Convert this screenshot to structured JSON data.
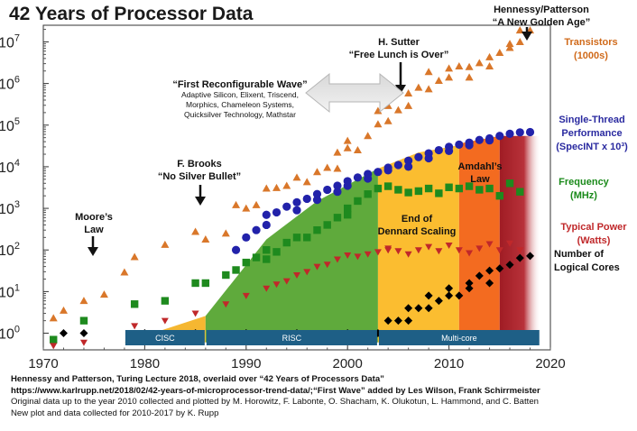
{
  "title": "42 Years of Processor Data",
  "credits": {
    "line1": "Hennessy and Patterson, Turing Lecture 2018, overlaid over “42 Years of Processors Data”",
    "line2": "https://www.karlrupp.net/2018/02/42-years-of-microprocessor-trend-data/;“First Wave” added by Les Wilson, Frank Schirrmeister",
    "line3": "Original data up to the year 2010 collected and plotted by M. Horowitz, F. Labonte, O. Shacham, K. Olukotun, L. Hammond, and C. Batten",
    "line4": "New plot and data collected for 2010-2017 by K. Rupp"
  },
  "annotations": {
    "hennessy_1": "Hennessy/Patterson",
    "hennessy_2": "“A New Golden Age”",
    "sutter_1": "H. Sutter",
    "sutter_2": "“Free Lunch is Over”",
    "reconf_title": "“First Reconfigurable Wave”",
    "reconf_1": "Adaptive Silicon, Elixent, Triscend,",
    "reconf_2": "Morphics, Chameleon Systems,",
    "reconf_3": "Quicksilver Technology, Mathstar",
    "brooks_1": "F. Brooks",
    "brooks_2": "“No Silver Bullet”",
    "moore_1": "Moore’s",
    "moore_2": "Law",
    "amdahl_1": "Amdahl’s",
    "amdahl_2": "Law",
    "dennard_1": "End of",
    "dennard_2": "Dennard Scaling"
  },
  "eras": [
    "CISC",
    "RISC",
    "Multi-core"
  ],
  "legend": {
    "transistors_1": "Transistors",
    "transistors_2": "(1000s)",
    "single_1": "Single-Thread",
    "single_2": "Performance",
    "single_3": "(SpecINT x 10³)",
    "frequency_1": "Frequency",
    "frequency_2": "(MHz)",
    "power_1": "Typical Power",
    "power_2": "(Watts)",
    "cores_1": "Number of",
    "cores_2": "Logical Cores"
  },
  "colors": {
    "transistors": "#d9772a",
    "single_thread": "#2222aa",
    "frequency": "#1e8a1e",
    "power": "#c0282a",
    "cores": "#000000",
    "era_bar": "#1e5f86",
    "cisc_region": "#f5b731",
    "risc_region": "#5faa3c",
    "dennard_region": "#fbbd30",
    "amdahl_region": "#f36b20",
    "golden_region": "#a01c24",
    "legend_transistors": "#d06a1a",
    "legend_single": "#2a2aa0",
    "legend_frequency": "#1a8a1a",
    "legend_power": "#c0282a"
  },
  "chart_data": {
    "type": "scatter",
    "title": "42 Years of Processor Data",
    "x_ticks": [
      1970,
      1980,
      1990,
      2000,
      2010,
      2020
    ],
    "y_ticks": [
      "10^0",
      "10^1",
      "10^2",
      "10^3",
      "10^4",
      "10^5",
      "10^6",
      "10^7"
    ],
    "xlim": [
      1970,
      2020
    ],
    "ylim_log10": [
      -0.4,
      7.4
    ],
    "y_scale": "log",
    "regions": [
      {
        "name": "CISC",
        "x": [
          1978,
          1986
        ]
      },
      {
        "name": "RISC",
        "x": [
          1986,
          2003
        ]
      },
      {
        "name": "End of Dennard Scaling",
        "x": [
          2003,
          2011
        ]
      },
      {
        "name": "Amdahl's Law",
        "x": [
          2011,
          2015
        ]
      },
      {
        "name": "A New Golden Age",
        "x": [
          2015,
          2019
        ]
      }
    ],
    "series": [
      {
        "name": "Transistors (1000s)",
        "marker": "triangle-up",
        "points": [
          [
            1971,
            2.3
          ],
          [
            1972,
            3.5
          ],
          [
            1974,
            6
          ],
          [
            1976,
            8.5
          ],
          [
            1978,
            29
          ],
          [
            1979,
            68
          ],
          [
            1982,
            134
          ],
          [
            1985,
            275
          ],
          [
            1986,
            180
          ],
          [
            1988,
            250
          ],
          [
            1989,
            1200
          ],
          [
            1990,
            1000
          ],
          [
            1991,
            1200
          ],
          [
            1992,
            3000
          ],
          [
            1993,
            3100
          ],
          [
            1994,
            3500
          ],
          [
            1995,
            5500
          ],
          [
            1996,
            4300
          ],
          [
            1997,
            7500
          ],
          [
            1998,
            9500
          ],
          [
            1999,
            22000
          ],
          [
            1999,
            9000
          ],
          [
            2000,
            42000
          ],
          [
            2000,
            28000
          ],
          [
            2001,
            25000
          ],
          [
            2002,
            55000
          ],
          [
            2003,
            105000
          ],
          [
            2003,
            220000
          ],
          [
            2004,
            125000
          ],
          [
            2004,
            290000
          ],
          [
            2005,
            230000
          ],
          [
            2006,
            290000
          ],
          [
            2006,
            580000
          ],
          [
            2007,
            800000
          ],
          [
            2008,
            730000
          ],
          [
            2008,
            1900000
          ],
          [
            2009,
            1170000
          ],
          [
            2010,
            1400000
          ],
          [
            2010,
            2300000
          ],
          [
            2011,
            2600000
          ],
          [
            2012,
            1400000
          ],
          [
            2012,
            2500000
          ],
          [
            2013,
            3100000
          ],
          [
            2014,
            4300000
          ],
          [
            2014,
            2600000
          ],
          [
            2015,
            5500000
          ],
          [
            2016,
            7200000
          ],
          [
            2016,
            9000000
          ],
          [
            2017,
            10000000
          ],
          [
            2017,
            19000000
          ],
          [
            2018,
            19000000
          ]
        ]
      },
      {
        "name": "Single-Thread Performance (SpecINT x 10^3)",
        "marker": "circle",
        "points": [
          [
            1989,
            100
          ],
          [
            1990,
            200
          ],
          [
            1991,
            300
          ],
          [
            1992,
            400
          ],
          [
            1992,
            700
          ],
          [
            1993,
            800
          ],
          [
            1994,
            1100
          ],
          [
            1995,
            1400
          ],
          [
            1995,
            900
          ],
          [
            1996,
            1700
          ],
          [
            1997,
            2200
          ],
          [
            1997,
            1600
          ],
          [
            1998,
            2800
          ],
          [
            1999,
            3500
          ],
          [
            1999,
            2500
          ],
          [
            2000,
            4500
          ],
          [
            2000,
            3500
          ],
          [
            2001,
            5500
          ],
          [
            2002,
            6700
          ],
          [
            2002,
            5200
          ],
          [
            2003,
            7500
          ],
          [
            2004,
            8200
          ],
          [
            2004,
            9500
          ],
          [
            2005,
            11000
          ],
          [
            2006,
            14000
          ],
          [
            2006,
            10000
          ],
          [
            2007,
            17000
          ],
          [
            2008,
            21000
          ],
          [
            2008,
            16000
          ],
          [
            2009,
            25000
          ],
          [
            2010,
            30000
          ],
          [
            2010,
            24000
          ],
          [
            2011,
            34000
          ],
          [
            2012,
            38000
          ],
          [
            2012,
            33000
          ],
          [
            2013,
            44000
          ],
          [
            2014,
            48000
          ],
          [
            2014,
            43000
          ],
          [
            2015,
            55000
          ],
          [
            2016,
            62000
          ],
          [
            2017,
            67000
          ],
          [
            2018,
            68000
          ]
        ]
      },
      {
        "name": "Frequency (MHz)",
        "marker": "square",
        "points": [
          [
            1971,
            0.7
          ],
          [
            1974,
            2
          ],
          [
            1979,
            5
          ],
          [
            1982,
            6
          ],
          [
            1985,
            16
          ],
          [
            1986,
            16
          ],
          [
            1988,
            25
          ],
          [
            1989,
            33
          ],
          [
            1990,
            50
          ],
          [
            1991,
            66
          ],
          [
            1992,
            100
          ],
          [
            1992,
            60
          ],
          [
            1993,
            90
          ],
          [
            1994,
            150
          ],
          [
            1995,
            200
          ],
          [
            1996,
            200
          ],
          [
            1997,
            300
          ],
          [
            1998,
            400
          ],
          [
            1999,
            600
          ],
          [
            2000,
            1000
          ],
          [
            2000,
            700
          ],
          [
            2001,
            1500
          ],
          [
            2002,
            2200
          ],
          [
            2003,
            3000
          ],
          [
            2004,
            3400
          ],
          [
            2005,
            2800
          ],
          [
            2006,
            2400
          ],
          [
            2007,
            2600
          ],
          [
            2008,
            3000
          ],
          [
            2009,
            2300
          ],
          [
            2010,
            3200
          ],
          [
            2011,
            3000
          ],
          [
            2012,
            3400
          ],
          [
            2013,
            2800
          ],
          [
            2014,
            3000
          ],
          [
            2015,
            2000
          ],
          [
            2016,
            4000
          ],
          [
            2017,
            2500
          ]
        ]
      },
      {
        "name": "Typical Power (Watts)",
        "marker": "triangle-down",
        "points": [
          [
            1971,
            0.5
          ],
          [
            1974,
            0.6
          ],
          [
            1979,
            1.5
          ],
          [
            1982,
            2
          ],
          [
            1985,
            3
          ],
          [
            1988,
            5
          ],
          [
            1990,
            8
          ],
          [
            1992,
            12
          ],
          [
            1993,
            15
          ],
          [
            1994,
            18
          ],
          [
            1995,
            25
          ],
          [
            1996,
            30
          ],
          [
            1997,
            40
          ],
          [
            1998,
            45
          ],
          [
            1999,
            60
          ],
          [
            2000,
            75
          ],
          [
            2001,
            70
          ],
          [
            2002,
            80
          ],
          [
            2003,
            90
          ],
          [
            2004,
            100
          ],
          [
            2004,
            110
          ],
          [
            2005,
            95
          ],
          [
            2006,
            80
          ],
          [
            2007,
            100
          ],
          [
            2008,
            120
          ],
          [
            2009,
            95
          ],
          [
            2010,
            130
          ],
          [
            2011,
            100
          ],
          [
            2012,
            85
          ],
          [
            2013,
            110
          ],
          [
            2014,
            140
          ],
          [
            2015,
            100
          ],
          [
            2016,
            145
          ],
          [
            2017,
            100
          ]
        ]
      },
      {
        "name": "Number of Logical Cores",
        "marker": "diamond",
        "points": [
          [
            1972,
            1
          ],
          [
            1974,
            1
          ],
          [
            1980,
            1
          ],
          [
            1985,
            1
          ],
          [
            1990,
            1
          ],
          [
            1995,
            1
          ],
          [
            2000,
            1
          ],
          [
            2003,
            1
          ],
          [
            2004,
            2
          ],
          [
            2005,
            2
          ],
          [
            2006,
            2
          ],
          [
            2006,
            4
          ],
          [
            2007,
            4
          ],
          [
            2008,
            4
          ],
          [
            2008,
            8
          ],
          [
            2009,
            6
          ],
          [
            2010,
            8
          ],
          [
            2010,
            12
          ],
          [
            2011,
            8
          ],
          [
            2012,
            16
          ],
          [
            2012,
            12
          ],
          [
            2013,
            24
          ],
          [
            2014,
            32
          ],
          [
            2014,
            16
          ],
          [
            2015,
            36
          ],
          [
            2016,
            44
          ],
          [
            2017,
            64
          ],
          [
            2018,
            72
          ]
        ]
      }
    ]
  }
}
